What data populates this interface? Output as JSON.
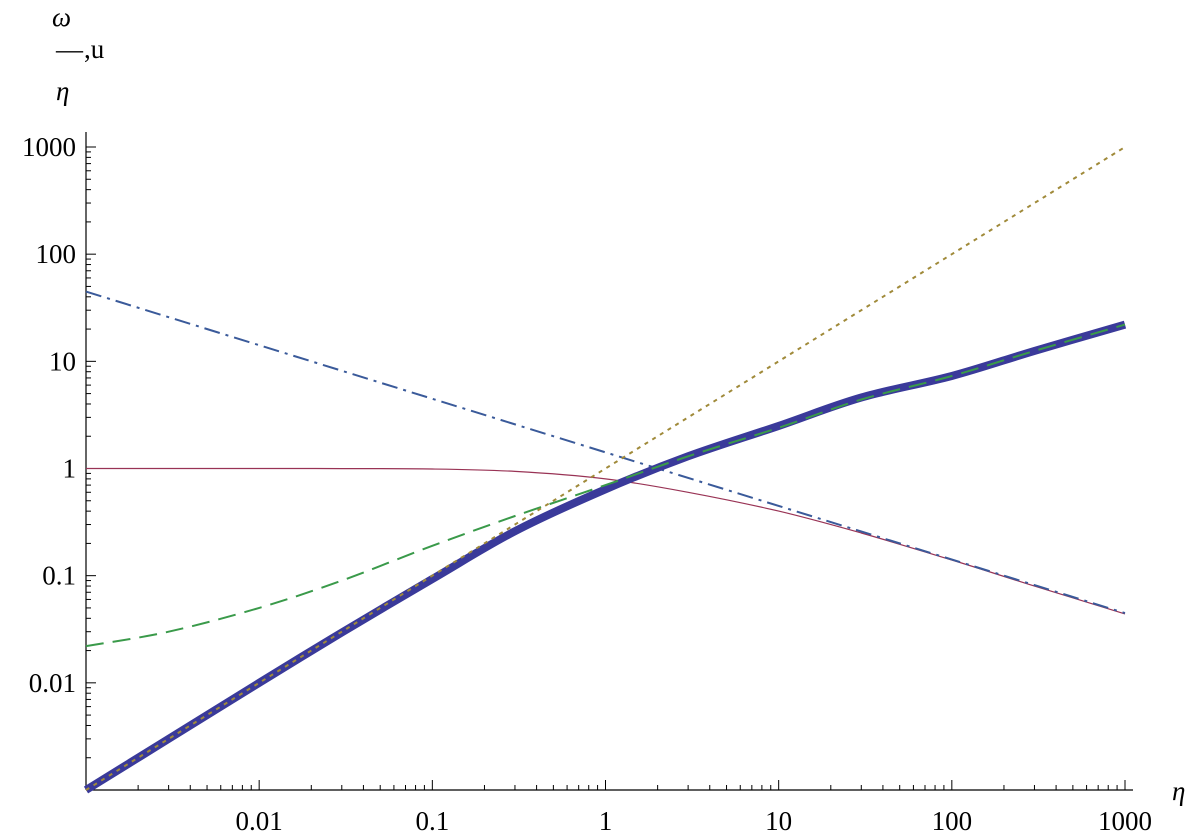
{
  "chart_data": {
    "type": "line",
    "title": "",
    "xlabel": "η",
    "ylabel": {
      "numerator": "ω",
      "bar": "—",
      "suffix": ",u",
      "denominator": "η"
    },
    "x_scale": "log",
    "y_scale": "log",
    "xlim": [
      0.001,
      1000
    ],
    "ylim": [
      0.001,
      1000
    ],
    "x_ticks": [
      {
        "value": 0.01,
        "label": "0.01"
      },
      {
        "value": 0.1,
        "label": "0.1"
      },
      {
        "value": 1,
        "label": "1"
      },
      {
        "value": 10,
        "label": "10"
      },
      {
        "value": 100,
        "label": "100"
      },
      {
        "value": 1000,
        "label": "1000"
      }
    ],
    "y_ticks": [
      {
        "value": 0.01,
        "label": "0.01"
      },
      {
        "value": 0.1,
        "label": "0.1"
      },
      {
        "value": 1,
        "label": "1"
      },
      {
        "value": 10,
        "label": "10"
      },
      {
        "value": 100,
        "label": "100"
      },
      {
        "value": 1000,
        "label": "1000"
      }
    ],
    "grid": false,
    "legend": "none",
    "series": [
      {
        "style": "thick-solid",
        "color": "#3a3a9a",
        "x": [
          0.001,
          0.003,
          0.01,
          0.03,
          0.1,
          0.3,
          1,
          3,
          10,
          30,
          100,
          300,
          1000
        ],
        "y": [
          0.001,
          0.003,
          0.01,
          0.0295,
          0.093,
          0.26,
          0.64,
          1.3,
          2.5,
          4.6,
          7.3,
          12.5,
          22
        ]
      },
      {
        "style": "dotted",
        "color": "#a08a3a",
        "x": [
          0.001,
          0.01,
          0.1,
          1,
          10,
          100,
          1000
        ],
        "y": [
          0.001,
          0.01,
          0.1,
          1,
          10,
          100,
          1000
        ]
      },
      {
        "style": "dashed",
        "color": "#3a9a4a",
        "x": [
          0.001,
          0.003,
          0.01,
          0.03,
          0.1,
          0.3,
          1,
          3,
          10,
          30,
          100,
          300,
          1000
        ],
        "y": [
          0.022,
          0.03,
          0.05,
          0.09,
          0.19,
          0.36,
          0.7,
          1.3,
          2.4,
          4.4,
          7.3,
          12.5,
          22
        ]
      },
      {
        "style": "solid-thin",
        "color": "#993355",
        "x": [
          0.001,
          0.01,
          0.03,
          0.1,
          0.3,
          1,
          3,
          10,
          30,
          100,
          300,
          1000
        ],
        "y": [
          1,
          1,
          0.998,
          0.99,
          0.94,
          0.8,
          0.6,
          0.4,
          0.25,
          0.14,
          0.08,
          0.044
        ]
      },
      {
        "style": "dash-dot",
        "color": "#3a5a9a",
        "x": [
          0.001,
          1000
        ],
        "y": [
          44.7,
          0.0447
        ]
      }
    ]
  }
}
